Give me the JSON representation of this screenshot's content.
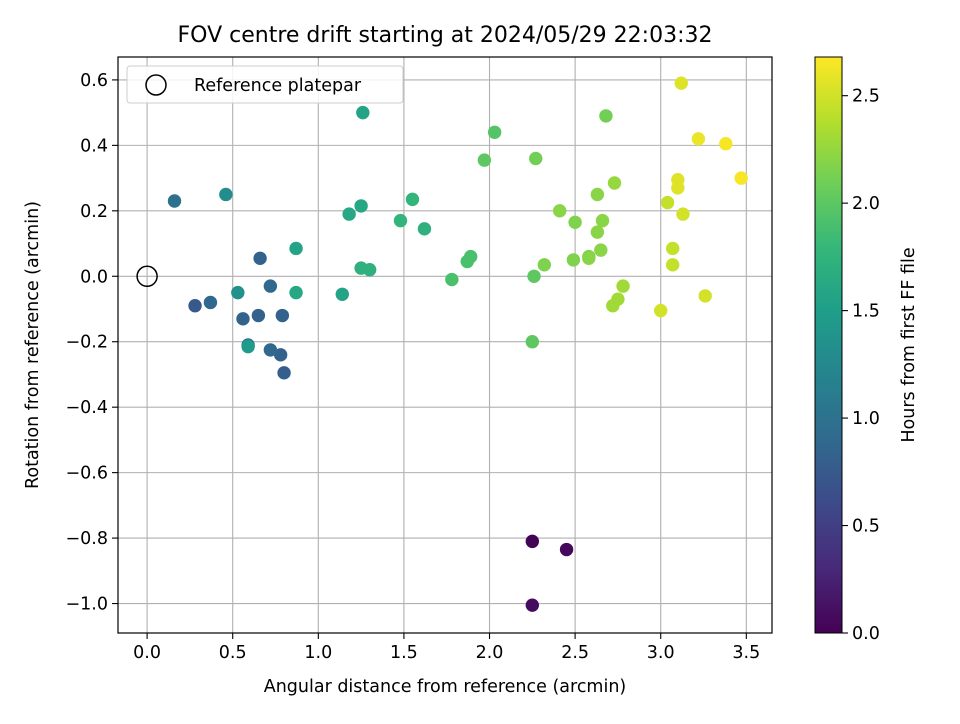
{
  "chart_data": {
    "type": "scatter",
    "title": "FOV centre drift starting at 2024/05/29 22:03:32",
    "xlabel": "Angular distance from reference (arcmin)",
    "ylabel": "Rotation from reference (arcmin)",
    "xlim": [
      -0.17,
      3.65
    ],
    "ylim": [
      -1.09,
      0.67
    ],
    "xticks": [
      0.0,
      0.5,
      1.0,
      1.5,
      2.0,
      2.5,
      3.0,
      3.5
    ],
    "xtick_labels": [
      "0.0",
      "0.5",
      "1.0",
      "1.5",
      "2.0",
      "2.5",
      "3.0",
      "3.5"
    ],
    "yticks": [
      -1.0,
      -0.8,
      -0.6,
      -0.4,
      -0.2,
      0.0,
      0.2,
      0.4,
      0.6
    ],
    "ytick_labels": [
      "−1.0",
      "−0.8",
      "−0.6",
      "−0.4",
      "−0.2",
      "0.0",
      "0.2",
      "0.4",
      "0.6"
    ],
    "grid": true,
    "legend": {
      "position": "top-left",
      "entries": [
        {
          "label": "Reference platepar",
          "marker": "open-circle"
        }
      ]
    },
    "reference_point": {
      "x": 0.0,
      "y": 0.0
    },
    "colorbar": {
      "label": "Hours from first FF file",
      "range": [
        0.0,
        2.68
      ],
      "ticks": [
        0.0,
        0.5,
        1.0,
        1.5,
        2.0,
        2.5
      ],
      "tick_labels": [
        "0.0",
        "0.5",
        "1.0",
        "1.5",
        "2.0",
        "2.5"
      ],
      "colormap": "viridis",
      "colors": [
        "#440154",
        "#482878",
        "#3e4989",
        "#31688e",
        "#26828e",
        "#1f9e89",
        "#35b779",
        "#6ece58",
        "#b5de2b",
        "#fde725"
      ]
    },
    "points": [
      {
        "x": 2.25,
        "y": -0.81,
        "t": 0.02
      },
      {
        "x": 2.45,
        "y": -0.835,
        "t": 0.05
      },
      {
        "x": 2.25,
        "y": -1.005,
        "t": 0.08
      },
      {
        "x": 0.28,
        "y": -0.09,
        "t": 0.75
      },
      {
        "x": 0.37,
        "y": -0.08,
        "t": 0.9
      },
      {
        "x": 0.16,
        "y": 0.23,
        "t": 1.0
      },
      {
        "x": 0.56,
        "y": -0.13,
        "t": 0.85
      },
      {
        "x": 0.65,
        "y": -0.12,
        "t": 0.85
      },
      {
        "x": 0.66,
        "y": 0.055,
        "t": 0.85
      },
      {
        "x": 0.72,
        "y": -0.03,
        "t": 0.9
      },
      {
        "x": 0.79,
        "y": -0.12,
        "t": 0.85
      },
      {
        "x": 0.72,
        "y": -0.225,
        "t": 0.9
      },
      {
        "x": 0.78,
        "y": -0.24,
        "t": 0.85
      },
      {
        "x": 0.8,
        "y": -0.295,
        "t": 0.8
      },
      {
        "x": 0.59,
        "y": -0.21,
        "t": 1.1
      },
      {
        "x": 0.46,
        "y": 0.25,
        "t": 1.3
      },
      {
        "x": 0.53,
        "y": -0.05,
        "t": 1.35
      },
      {
        "x": 0.59,
        "y": -0.215,
        "t": 1.45
      },
      {
        "x": 0.87,
        "y": 0.085,
        "t": 1.55
      },
      {
        "x": 0.87,
        "y": -0.05,
        "t": 1.6
      },
      {
        "x": 1.14,
        "y": -0.055,
        "t": 1.55
      },
      {
        "x": 1.18,
        "y": 0.19,
        "t": 1.6
      },
      {
        "x": 1.25,
        "y": 0.215,
        "t": 1.6
      },
      {
        "x": 1.26,
        "y": 0.5,
        "t": 1.55
      },
      {
        "x": 1.25,
        "y": 0.025,
        "t": 1.7
      },
      {
        "x": 1.3,
        "y": 0.02,
        "t": 1.7
      },
      {
        "x": 1.48,
        "y": 0.17,
        "t": 1.75
      },
      {
        "x": 1.55,
        "y": 0.235,
        "t": 1.75
      },
      {
        "x": 1.62,
        "y": 0.145,
        "t": 1.7
      },
      {
        "x": 1.78,
        "y": -0.01,
        "t": 1.9
      },
      {
        "x": 1.87,
        "y": 0.045,
        "t": 1.9
      },
      {
        "x": 1.89,
        "y": 0.06,
        "t": 1.9
      },
      {
        "x": 1.97,
        "y": 0.355,
        "t": 2.0
      },
      {
        "x": 2.03,
        "y": 0.44,
        "t": 1.95
      },
      {
        "x": 2.25,
        "y": -0.2,
        "t": 2.0
      },
      {
        "x": 2.26,
        "y": 0.0,
        "t": 2.0
      },
      {
        "x": 2.27,
        "y": 0.36,
        "t": 2.1
      },
      {
        "x": 2.32,
        "y": 0.035,
        "t": 2.15
      },
      {
        "x": 2.41,
        "y": 0.2,
        "t": 2.2
      },
      {
        "x": 2.49,
        "y": 0.05,
        "t": 2.15
      },
      {
        "x": 2.5,
        "y": 0.165,
        "t": 2.15
      },
      {
        "x": 2.58,
        "y": 0.055,
        "t": 2.2
      },
      {
        "x": 2.58,
        "y": 0.06,
        "t": 2.15
      },
      {
        "x": 2.63,
        "y": 0.25,
        "t": 2.2
      },
      {
        "x": 2.63,
        "y": 0.135,
        "t": 2.2
      },
      {
        "x": 2.66,
        "y": 0.17,
        "t": 2.2
      },
      {
        "x": 2.65,
        "y": 0.08,
        "t": 2.2
      },
      {
        "x": 2.68,
        "y": 0.49,
        "t": 2.1
      },
      {
        "x": 2.73,
        "y": 0.285,
        "t": 2.25
      },
      {
        "x": 2.72,
        "y": -0.09,
        "t": 2.3
      },
      {
        "x": 2.75,
        "y": -0.07,
        "t": 2.3
      },
      {
        "x": 2.78,
        "y": -0.03,
        "t": 2.3
      },
      {
        "x": 3.0,
        "y": -0.105,
        "t": 2.5
      },
      {
        "x": 3.04,
        "y": 0.225,
        "t": 2.45
      },
      {
        "x": 3.07,
        "y": 0.085,
        "t": 2.45
      },
      {
        "x": 3.07,
        "y": 0.035,
        "t": 2.45
      },
      {
        "x": 3.1,
        "y": 0.295,
        "t": 2.55
      },
      {
        "x": 3.1,
        "y": 0.27,
        "t": 2.55
      },
      {
        "x": 3.12,
        "y": 0.59,
        "t": 2.55
      },
      {
        "x": 3.13,
        "y": 0.19,
        "t": 2.5
      },
      {
        "x": 3.22,
        "y": 0.42,
        "t": 2.6
      },
      {
        "x": 3.26,
        "y": -0.06,
        "t": 2.5
      },
      {
        "x": 3.38,
        "y": 0.405,
        "t": 2.65
      },
      {
        "x": 3.47,
        "y": 0.3,
        "t": 2.65
      }
    ]
  }
}
